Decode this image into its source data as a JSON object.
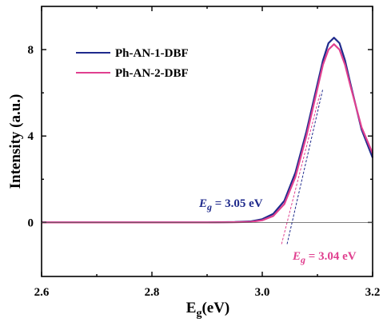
{
  "chart_data": {
    "type": "line",
    "xlabel_base": "E",
    "xlabel_sub": "g",
    "xlabel_rest": "(eV)",
    "ylabel": "Intensity (a.u.)",
    "xlim": [
      2.6,
      3.2
    ],
    "ylim": [
      -2.5,
      10
    ],
    "xticks": [
      2.6,
      2.8,
      3.0,
      3.2
    ],
    "xtick_labels": [
      "2.6",
      "2.8",
      "3.0",
      "3.2"
    ],
    "yticks": [
      0,
      4,
      8
    ],
    "ytick_labels": [
      "0",
      "4",
      "8"
    ],
    "zero_line": true,
    "legend_position": "top-left",
    "series": [
      {
        "name": "Ph-AN-1-DBF",
        "color": "#1f2a8c",
        "x": [
          2.6,
          2.9,
          2.95,
          2.98,
          3.0,
          3.02,
          3.04,
          3.06,
          3.08,
          3.1,
          3.11,
          3.12,
          3.13,
          3.14,
          3.15,
          3.16,
          3.18,
          3.2
        ],
        "y": [
          0,
          0,
          0.02,
          0.05,
          0.15,
          0.4,
          1.0,
          2.3,
          4.2,
          6.4,
          7.5,
          8.3,
          8.55,
          8.3,
          7.5,
          6.4,
          4.3,
          3.0
        ]
      },
      {
        "name": "Ph-AN-2-DBF",
        "color": "#e0408f",
        "x": [
          2.6,
          2.9,
          2.95,
          2.98,
          3.0,
          3.02,
          3.04,
          3.06,
          3.08,
          3.1,
          3.11,
          3.12,
          3.13,
          3.14,
          3.15,
          3.16,
          3.18,
          3.2
        ],
        "y": [
          0,
          0,
          0.01,
          0.03,
          0.1,
          0.3,
          0.85,
          2.1,
          4.0,
          6.2,
          7.3,
          8.0,
          8.25,
          8.0,
          7.3,
          6.3,
          4.4,
          3.2
        ]
      }
    ],
    "tangents": [
      {
        "color": "#1f2a8c",
        "x": [
          3.045,
          3.11
        ],
        "y": [
          -1.0,
          6.2
        ]
      },
      {
        "color": "#e0408f",
        "x": [
          3.035,
          3.105
        ],
        "y": [
          -1.0,
          6.0
        ]
      }
    ],
    "annotations": [
      {
        "sym": "E",
        "sub": "g",
        "value": " = 3.05 eV",
        "color": "#1f2a8c"
      },
      {
        "sym": "E",
        "sub": "g",
        "value": " = 3.04 eV",
        "color": "#e0408f"
      }
    ]
  }
}
